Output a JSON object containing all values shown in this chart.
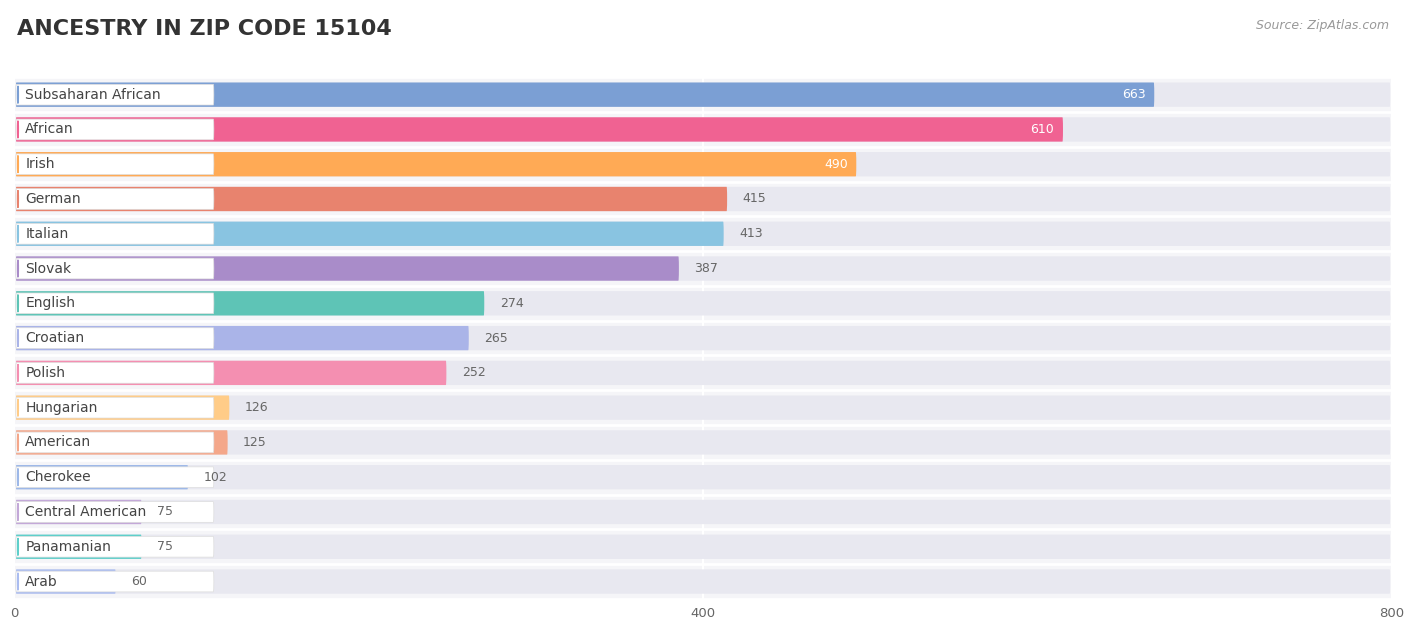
{
  "title": "ANCESTRY IN ZIP CODE 15104",
  "source": "Source: ZipAtlas.com",
  "categories": [
    "Subsaharan African",
    "African",
    "Irish",
    "German",
    "Italian",
    "Slovak",
    "English",
    "Croatian",
    "Polish",
    "Hungarian",
    "American",
    "Cherokee",
    "Central American",
    "Panamanian",
    "Arab"
  ],
  "values": [
    663,
    610,
    490,
    415,
    413,
    387,
    274,
    265,
    252,
    126,
    125,
    102,
    75,
    75,
    60
  ],
  "colors": [
    "#7B9FD4",
    "#F06292",
    "#FFAA55",
    "#E8836E",
    "#89C4E1",
    "#A98CC9",
    "#5EC4B6",
    "#AAB4E8",
    "#F48FB1",
    "#FFCC88",
    "#F4A78A",
    "#9DB8E8",
    "#C3A8D8",
    "#5ECFCA",
    "#AABCF0"
  ],
  "xlim": [
    0,
    800
  ],
  "xticks": [
    0,
    400,
    800
  ],
  "background_color": "#ffffff",
  "bar_bg_color": "#e8e8f0",
  "title_fontsize": 16,
  "label_fontsize": 10,
  "value_fontsize": 9,
  "source_fontsize": 9
}
